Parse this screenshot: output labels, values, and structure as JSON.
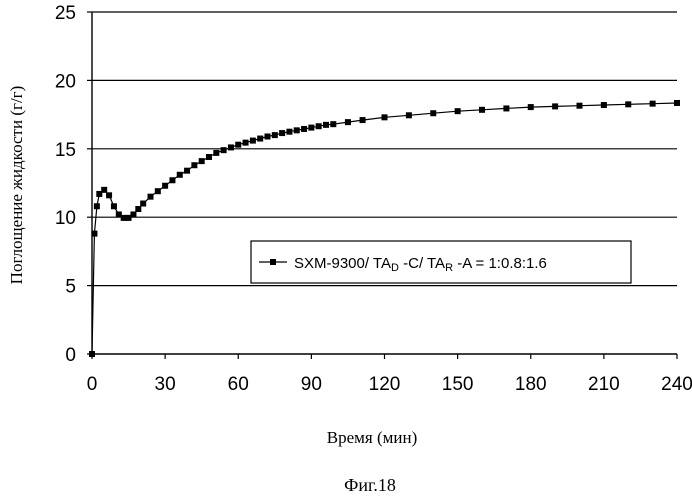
{
  "chart_data": {
    "type": "line",
    "xlabel": "Время (мин)",
    "ylabel": "Поглощение жидкости (г/г)",
    "xlim": [
      0,
      240
    ],
    "ylim": [
      0,
      25
    ],
    "xticks": [
      "0",
      "30",
      "60",
      "90",
      "120",
      "150",
      "180",
      "210",
      "240"
    ],
    "yticks": [
      "0",
      "5",
      "10",
      "15",
      "20",
      "25"
    ],
    "grid": "horizontal",
    "legend_position": "center-right",
    "series": [
      {
        "name": "SXM-9300/ TA_D -C/ TA_R -A = 1:0.8:1.6",
        "legend": {
          "main": "SXM-9300/ TA",
          "sub1": "D",
          "mid": " -C/ TA",
          "sub2": "R",
          "end": " -A = 1:0.8:1.6"
        },
        "color": "#000000",
        "marker": "square",
        "x": [
          0,
          1,
          2,
          3,
          5,
          7,
          9,
          11,
          13,
          15,
          17,
          19,
          21,
          24,
          27,
          30,
          33,
          36,
          39,
          42,
          45,
          48,
          51,
          54,
          57,
          60,
          63,
          66,
          69,
          72,
          75,
          78,
          81,
          84,
          87,
          90,
          93,
          96,
          99,
          105,
          111,
          120,
          130,
          140,
          150,
          160,
          170,
          180,
          190,
          200,
          210,
          220,
          230,
          240
        ],
        "y": [
          0,
          8.8,
          10.8,
          11.7,
          12.0,
          11.6,
          10.8,
          10.2,
          9.95,
          9.95,
          10.2,
          10.6,
          11.0,
          11.5,
          11.9,
          12.3,
          12.7,
          13.1,
          13.4,
          13.8,
          14.1,
          14.4,
          14.7,
          14.9,
          15.1,
          15.3,
          15.45,
          15.6,
          15.75,
          15.9,
          16.0,
          16.15,
          16.25,
          16.35,
          16.45,
          16.55,
          16.65,
          16.75,
          16.8,
          16.95,
          17.1,
          17.3,
          17.45,
          17.6,
          17.75,
          17.85,
          17.95,
          18.05,
          18.1,
          18.15,
          18.2,
          18.25,
          18.3,
          18.35
        ]
      }
    ]
  },
  "caption": "Фиг.18"
}
